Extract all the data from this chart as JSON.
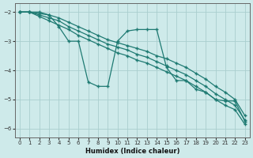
{
  "xlabel": "Humidex (Indice chaleur)",
  "ylabel": "",
  "xlim": [
    -0.5,
    23.5
  ],
  "ylim": [
    -6.3,
    -1.7
  ],
  "yticks": [
    -6,
    -5,
    -4,
    -3,
    -2
  ],
  "xticks": [
    0,
    1,
    2,
    3,
    4,
    5,
    6,
    7,
    8,
    9,
    10,
    11,
    12,
    13,
    14,
    15,
    16,
    17,
    18,
    19,
    20,
    21,
    22,
    23
  ],
  "background_color": "#ceeaea",
  "grid_color": "#aacece",
  "line_color": "#1e7a72",
  "lines": [
    {
      "x": [
        0,
        1,
        2,
        3,
        4,
        5,
        6,
        7,
        8,
        9,
        10,
        11,
        12,
        13,
        14,
        15,
        16,
        17,
        18,
        19,
        20,
        21,
        22,
        23
      ],
      "y": [
        -2.0,
        -2.0,
        -2.05,
        -2.1,
        -2.2,
        -2.35,
        -2.5,
        -2.65,
        -2.8,
        -2.95,
        -3.05,
        -3.15,
        -3.25,
        -3.35,
        -3.5,
        -3.6,
        -3.75,
        -3.9,
        -4.1,
        -4.3,
        -4.55,
        -4.75,
        -5.0,
        -5.55
      ]
    },
    {
      "x": [
        0,
        1,
        2,
        3,
        4,
        5,
        6,
        7,
        8,
        9,
        10,
        11,
        12,
        13,
        14,
        15,
        16,
        17,
        18,
        19,
        20,
        21,
        22,
        23
      ],
      "y": [
        -2.0,
        -2.0,
        -2.1,
        -2.2,
        -2.3,
        -2.5,
        -2.65,
        -2.8,
        -2.95,
        -3.1,
        -3.2,
        -3.3,
        -3.45,
        -3.55,
        -3.7,
        -3.85,
        -4.0,
        -4.15,
        -4.35,
        -4.55,
        -4.8,
        -5.0,
        -5.2,
        -5.7
      ]
    },
    {
      "x": [
        0,
        1,
        2,
        3,
        4,
        5,
        6,
        7,
        8,
        9,
        10,
        11,
        12,
        13,
        14,
        15,
        16,
        17,
        18,
        19,
        20,
        21,
        22,
        23
      ],
      "y": [
        -2.0,
        -2.0,
        -2.0,
        -2.1,
        -2.5,
        -3.0,
        -3.0,
        -4.4,
        -4.55,
        -4.55,
        -3.0,
        -2.65,
        -2.6,
        -2.6,
        -2.6,
        -3.9,
        -4.35,
        -4.35,
        -4.65,
        -4.75,
        -5.0,
        -5.05,
        -5.05,
        -5.75
      ]
    },
    {
      "x": [
        0,
        1,
        2,
        3,
        4,
        5,
        6,
        7,
        8,
        9,
        10,
        11,
        12,
        13,
        14,
        15,
        16,
        17,
        18,
        19,
        20,
        21,
        22,
        23
      ],
      "y": [
        -2.0,
        -2.0,
        -2.15,
        -2.3,
        -2.45,
        -2.6,
        -2.8,
        -2.95,
        -3.1,
        -3.25,
        -3.4,
        -3.5,
        -3.65,
        -3.75,
        -3.9,
        -4.05,
        -4.2,
        -4.35,
        -4.55,
        -4.75,
        -5.0,
        -5.2,
        -5.35,
        -5.85
      ]
    }
  ]
}
